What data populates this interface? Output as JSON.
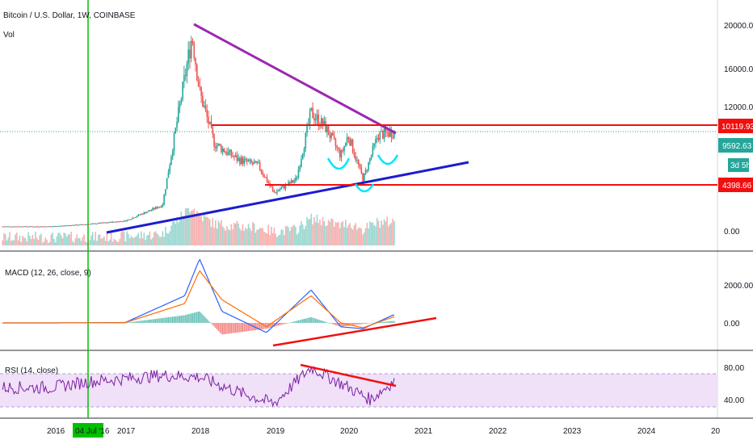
{
  "header": {
    "symbol_title": "Bitcoin / U.S. Dollar, 1W, COINBASE",
    "volume_label": "Vol"
  },
  "panes": {
    "macd_label": "MACD (12, 26, close, 9)",
    "rsi_label": "RSI (14, close)"
  },
  "time_axis": {
    "labels": [
      "2016",
      "2017",
      "2018",
      "2019",
      "2020",
      "2021",
      "2022",
      "2023",
      "2024",
      "20"
    ],
    "crosshair_date": "04 Jul '16"
  },
  "price_badges": {
    "resistance": "10119.93",
    "last_price": "9592.63",
    "countdown": "3d 5h",
    "support": "4398.66"
  },
  "colors": {
    "up": "#26a69a",
    "down": "#ef5350",
    "trendline_purple": "#9c27b0",
    "trendline_blue": "#1c1ccf",
    "horizontal_red": "#f20f0f",
    "pattern_cyan": "#00e5ff",
    "crosshair_green": "#00c000",
    "macd_line": "#2962ff",
    "signal_line": "#ff6d00",
    "rsi_line": "#7b1fa2",
    "rsi_band": "#f0e0f8"
  },
  "chart_data": [
    {
      "type": "candlestick",
      "title": "Bitcoin / U.S. Dollar, 1W, COINBASE",
      "y_ticks": [
        "20000.00",
        "16000.00",
        "12000.00",
        "0.00"
      ],
      "x": [
        "2016",
        "2016.5",
        "2017",
        "2017.5",
        "2017.9",
        "2018",
        "2018.2",
        "2018.5",
        "2018.8",
        "2019",
        "2019.3",
        "2019.5",
        "2019.7",
        "2019.9",
        "2020",
        "2020.2",
        "2020.4",
        "2020.6"
      ],
      "close": [
        430,
        650,
        970,
        2500,
        19000,
        13500,
        8500,
        7000,
        6300,
        3700,
        5000,
        11500,
        10000,
        7300,
        9300,
        5000,
        9300,
        9600
      ],
      "annotations": [
        "10119.93",
        "4398.66"
      ]
    },
    {
      "type": "line",
      "title": "MACD (12, 26, close, 9)",
      "y_ticks": [
        "2000.00",
        "0.00"
      ],
      "x": [
        "2016",
        "2017",
        "2017.8",
        "2018",
        "2018.3",
        "2018.9",
        "2019.5",
        "2019.9",
        "2020.2",
        "2020.6"
      ],
      "series": [
        {
          "name": "MACD",
          "values": [
            0,
            20,
            1400,
            3300,
            600,
            -500,
            1700,
            -200,
            -300,
            400
          ]
        },
        {
          "name": "Signal",
          "values": [
            0,
            15,
            1000,
            2700,
            1200,
            -200,
            1400,
            0,
            -250,
            300
          ]
        }
      ]
    },
    {
      "type": "line",
      "title": "RSI (14, close)",
      "y_ticks": [
        "80.00",
        "40.00"
      ],
      "x": [
        "2016",
        "2016.5",
        "2017",
        "2017.5",
        "2018",
        "2018.5",
        "2019",
        "2019.5",
        "2020",
        "2020.3",
        "2020.6"
      ],
      "series": [
        {
          "name": "RSI",
          "values": [
            55,
            62,
            66,
            70,
            68,
            50,
            35,
            80,
            55,
            40,
            62
          ]
        }
      ],
      "ylim": [
        30,
        80
      ]
    }
  ]
}
